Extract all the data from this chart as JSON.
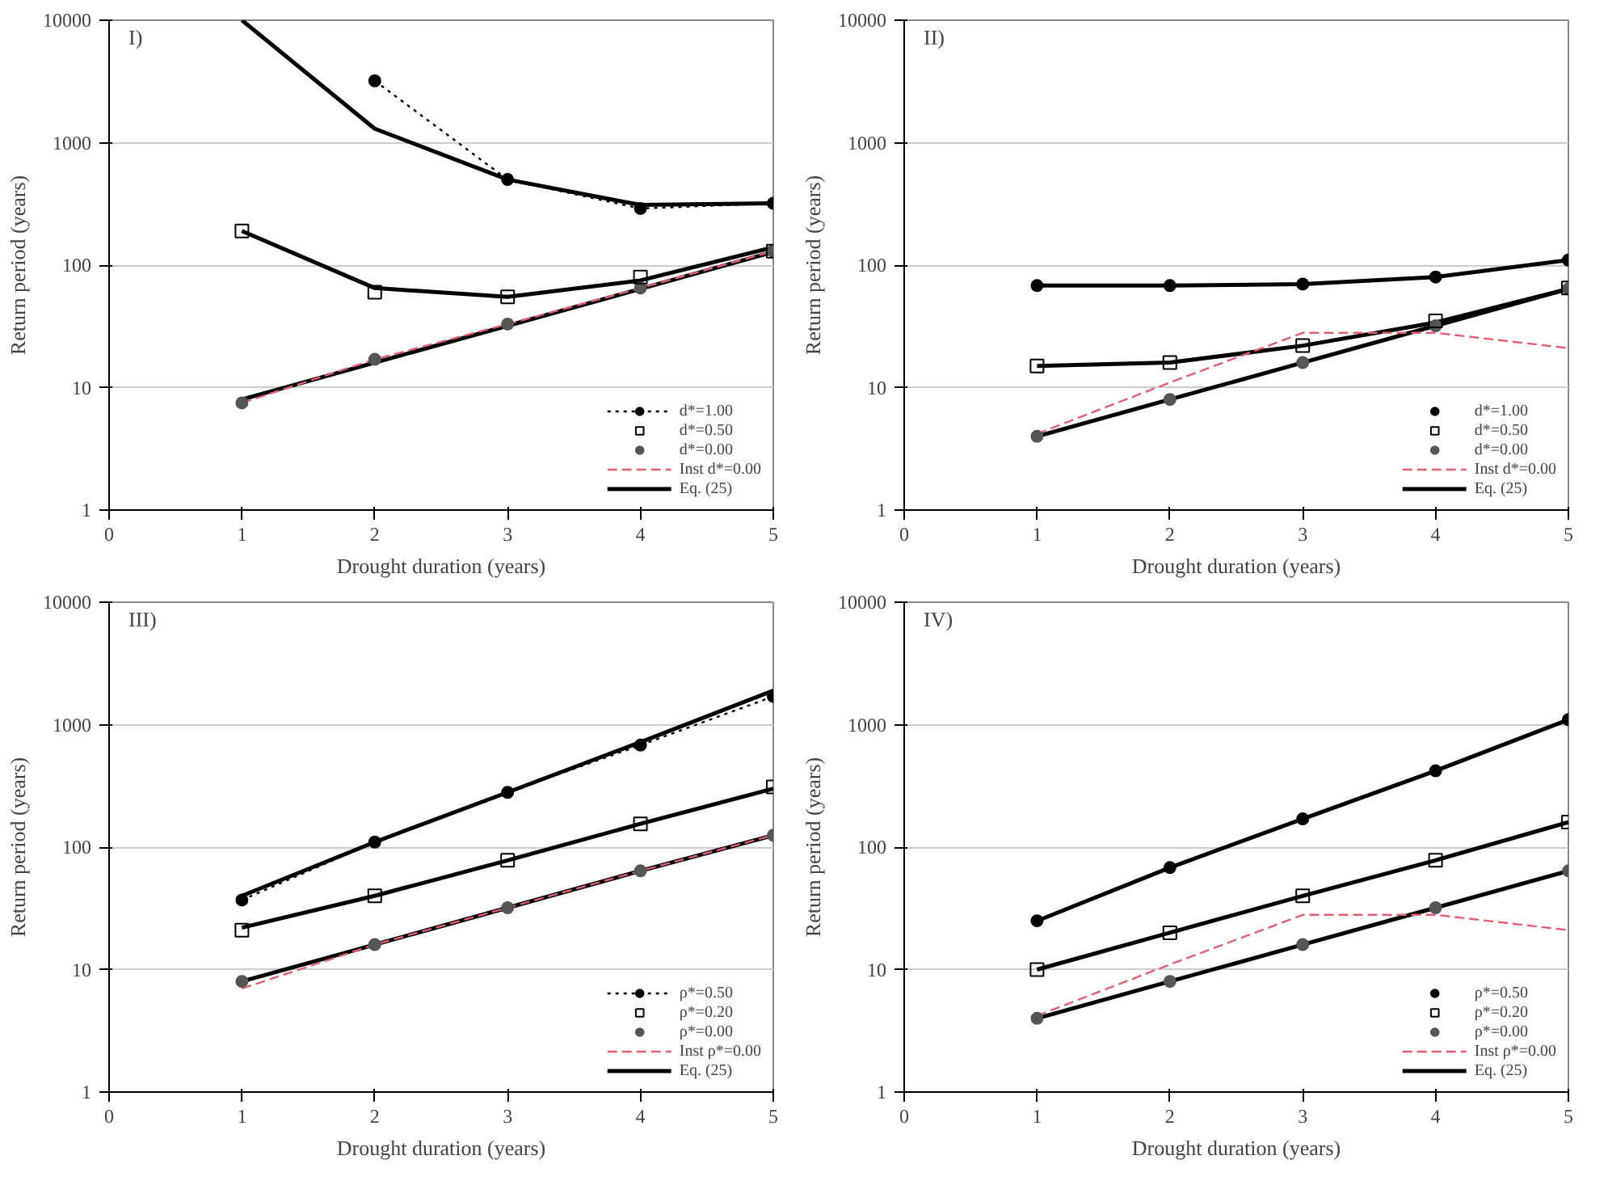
{
  "chart_data": [
    {
      "type": "line",
      "title": "I)",
      "xlabel": "Drought duration (years)",
      "ylabel": "Return period (years)",
      "log": "y",
      "grid": "y",
      "legend": "bottom right",
      "xlim": [
        0,
        5
      ],
      "xticks": [
        0,
        1,
        2,
        3,
        4,
        5
      ],
      "ylim": [
        1,
        10000
      ],
      "yticks": [
        1,
        10,
        100,
        1000,
        10000
      ],
      "series": [
        {
          "name": "d*=1.00",
          "color": "#000000",
          "marker": "circle",
          "line_style": "dotted",
          "x": [
            2,
            3,
            4,
            5
          ],
          "values": [
            3200,
            500,
            290,
            320
          ]
        },
        {
          "name": "d*=0.50",
          "type": "scatter",
          "color": "#000000",
          "marker": "square",
          "x": [
            1,
            2,
            3,
            4,
            5
          ],
          "values": [
            190,
            60,
            55,
            80,
            130
          ]
        },
        {
          "name": "d*=0.00",
          "type": "scatter",
          "color": "#555555",
          "marker": "circle",
          "x": [
            1,
            2,
            3,
            4,
            5
          ],
          "values": [
            7.5,
            17,
            33,
            65,
            130
          ]
        },
        {
          "name": "Inst d*=0.00",
          "color": "#e06070",
          "line_style": "dashed",
          "x": [
            1,
            2,
            3,
            4,
            5
          ],
          "values": [
            7.5,
            17,
            33,
            65,
            130
          ]
        },
        {
          "name": "Eq. (25)",
          "color": "#000000",
          "line_style": "solid",
          "x": [
            1,
            2,
            3,
            4,
            5
          ],
          "values": [
            10000,
            1300,
            500,
            310,
            320
          ]
        },
        {
          "color": "#000000",
          "line_style": "solid",
          "x": [
            1,
            2,
            3,
            4,
            5
          ],
          "values": [
            190,
            65,
            55,
            75,
            140
          ]
        },
        {
          "color": "#000000",
          "line_style": "solid",
          "x": [
            1,
            2,
            3,
            4,
            5
          ],
          "values": [
            8,
            16,
            32,
            64,
            128
          ]
        }
      ]
    },
    {
      "type": "line",
      "title": "II)",
      "xlabel": "Drought duration (years)",
      "ylabel": "Return period (years)",
      "log": "y",
      "grid": "y",
      "legend": "bottom right",
      "xlim": [
        0,
        5
      ],
      "xticks": [
        0,
        1,
        2,
        3,
        4,
        5
      ],
      "ylim": [
        1,
        10000
      ],
      "yticks": [
        1,
        10,
        100,
        1000,
        10000
      ],
      "series": [
        {
          "name": "d*=1.00",
          "type": "scatter",
          "color": "#000000",
          "marker": "circle",
          "x": [
            1,
            2,
            3,
            4,
            5
          ],
          "values": [
            68,
            68,
            70,
            80,
            110
          ]
        },
        {
          "name": "d*=0.50",
          "type": "scatter",
          "color": "#000000",
          "marker": "square",
          "x": [
            1,
            2,
            3,
            4,
            5
          ],
          "values": [
            15,
            16,
            22,
            35,
            65
          ]
        },
        {
          "name": "d*=0.00",
          "type": "scatter",
          "color": "#555555",
          "marker": "circle",
          "x": [
            1,
            2,
            3,
            4,
            5
          ],
          "values": [
            4,
            8,
            16,
            32,
            64
          ]
        },
        {
          "name": "Inst d*=0.00",
          "color": "#e06070",
          "line_style": "dashed",
          "x": [
            1,
            2,
            3,
            4,
            5
          ],
          "values": [
            4.2,
            11,
            28,
            28,
            21
          ]
        },
        {
          "name": "Eq. (25)",
          "color": "#000000",
          "line_style": "solid",
          "x": [
            1,
            2,
            3,
            4,
            5
          ],
          "values": [
            68,
            68,
            70,
            80,
            110
          ]
        },
        {
          "color": "#000000",
          "line_style": "solid",
          "x": [
            1,
            2,
            3,
            4,
            5
          ],
          "values": [
            15,
            16,
            22,
            34,
            64
          ]
        },
        {
          "color": "#000000",
          "line_style": "solid",
          "x": [
            1,
            2,
            3,
            4,
            5
          ],
          "values": [
            4,
            8,
            16,
            32,
            64
          ]
        }
      ]
    },
    {
      "type": "line",
      "title": "III)",
      "xlabel": "Drought duration (years)",
      "ylabel": "Return period (years)",
      "log": "y",
      "grid": "y",
      "legend": "bottom right",
      "xlim": [
        0,
        5
      ],
      "xticks": [
        0,
        1,
        2,
        3,
        4,
        5
      ],
      "ylim": [
        1,
        10000
      ],
      "yticks": [
        1,
        10,
        100,
        1000,
        10000
      ],
      "series": [
        {
          "name": "ρ*=0.50",
          "color": "#000000",
          "marker": "circle",
          "line_style": "dotted",
          "x": [
            1,
            2,
            3,
            4,
            5
          ],
          "values": [
            37,
            110,
            280,
            680,
            1700
          ]
        },
        {
          "name": "ρ*=0.20",
          "type": "scatter",
          "color": "#000000",
          "marker": "square",
          "x": [
            1,
            2,
            3,
            4,
            5
          ],
          "values": [
            21,
            40,
            78,
            155,
            310
          ]
        },
        {
          "name": "ρ*=0.00",
          "type": "scatter",
          "color": "#555555",
          "marker": "circle",
          "x": [
            1,
            2,
            3,
            4,
            5
          ],
          "values": [
            8,
            16,
            32,
            64,
            125
          ]
        },
        {
          "name": "Inst ρ*=0.00",
          "color": "#e06070",
          "line_style": "dashed",
          "x": [
            1,
            2,
            3,
            4,
            5
          ],
          "values": [
            7,
            16,
            32,
            64,
            125
          ]
        },
        {
          "name": "Eq. (25)",
          "color": "#000000",
          "line_style": "solid",
          "x": [
            1,
            2,
            3,
            4,
            5
          ],
          "values": [
            40,
            110,
            280,
            720,
            1900
          ]
        },
        {
          "color": "#000000",
          "line_style": "solid",
          "x": [
            1,
            2,
            3,
            4,
            5
          ],
          "values": [
            22,
            40,
            78,
            155,
            300
          ]
        },
        {
          "color": "#000000",
          "line_style": "solid",
          "x": [
            1,
            2,
            3,
            4,
            5
          ],
          "values": [
            8,
            16,
            32,
            64,
            125
          ]
        }
      ]
    },
    {
      "type": "line",
      "title": "IV)",
      "xlabel": "Drought duration (years)",
      "ylabel": "Return period (years)",
      "log": "y",
      "grid": "y",
      "legend": "bottom right",
      "xlim": [
        0,
        5
      ],
      "xticks": [
        0,
        1,
        2,
        3,
        4,
        5
      ],
      "ylim": [
        1,
        10000
      ],
      "yticks": [
        1,
        10,
        100,
        1000,
        10000
      ],
      "series": [
        {
          "name": "ρ*=0.50",
          "type": "scatter",
          "color": "#000000",
          "marker": "circle",
          "x": [
            1,
            2,
            3,
            4,
            5
          ],
          "values": [
            25,
            68,
            170,
            420,
            1100
          ]
        },
        {
          "name": "ρ*=0.20",
          "type": "scatter",
          "color": "#000000",
          "marker": "square",
          "x": [
            1,
            2,
            3,
            4,
            5
          ],
          "values": [
            10,
            20,
            40,
            78,
            160
          ]
        },
        {
          "name": "ρ*=0.00",
          "type": "scatter",
          "color": "#555555",
          "marker": "circle",
          "x": [
            1,
            2,
            3,
            4,
            5
          ],
          "values": [
            4,
            8,
            16,
            32,
            64
          ]
        },
        {
          "name": "Inst ρ*=0.00",
          "color": "#e06070",
          "line_style": "dashed",
          "x": [
            1,
            2,
            3,
            4,
            5
          ],
          "values": [
            4.2,
            11,
            28,
            28,
            21
          ]
        },
        {
          "name": "Eq. (25)",
          "color": "#000000",
          "line_style": "solid",
          "x": [
            1,
            2,
            3,
            4,
            5
          ],
          "values": [
            25,
            68,
            170,
            420,
            1100
          ]
        },
        {
          "color": "#000000",
          "line_style": "solid",
          "x": [
            1,
            2,
            3,
            4,
            5
          ],
          "values": [
            10,
            20,
            40,
            78,
            160
          ]
        },
        {
          "color": "#000000",
          "line_style": "solid",
          "x": [
            1,
            2,
            3,
            4,
            5
          ],
          "values": [
            4,
            8,
            16,
            32,
            64
          ]
        }
      ]
    }
  ]
}
